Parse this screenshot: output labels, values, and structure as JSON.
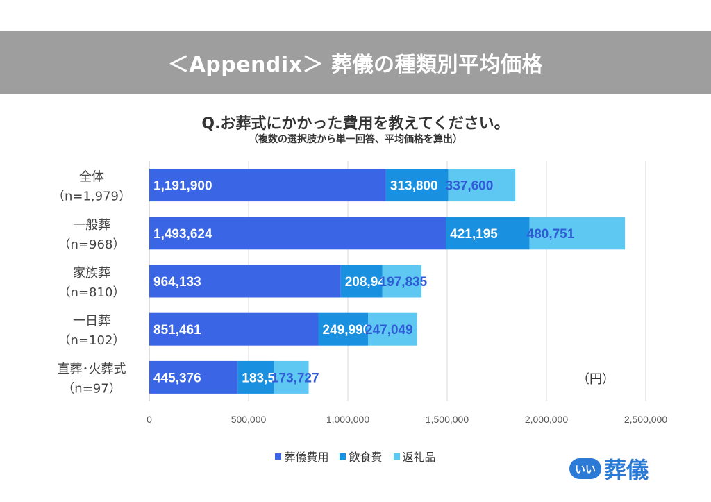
{
  "header": {
    "title": "＜Appendix＞ 葬儀の種類別平均価格"
  },
  "question": {
    "title": "Q.お葬式にかかった費用を教えてください。",
    "subtitle": "（複数の選択肢から単一回答、平均価格を算出）"
  },
  "unit_label": "（円）",
  "legend_labels": [
    "葬儀費用",
    "飲食費",
    "返礼品"
  ],
  "colors": {
    "funeral": "#3a66e6",
    "food": "#1a90e0",
    "gift": "#5fc8f2",
    "header_bg": "#9e9e9e"
  },
  "logo": {
    "circle_text": "いい",
    "text": "葬儀"
  },
  "chart_data": {
    "type": "bar",
    "orientation": "horizontal",
    "stacked": true,
    "categories": [
      {
        "name": "全体",
        "n": "（n=1,979）"
      },
      {
        "name": "一般葬",
        "n": "（n=968）"
      },
      {
        "name": "家族葬",
        "n": "（n=810）"
      },
      {
        "name": "一日葬",
        "n": "（n=102）"
      },
      {
        "name": "直葬･火葬式",
        "n": "（n=97）"
      }
    ],
    "series": [
      {
        "name": "葬儀費用",
        "values": [
          1191900,
          1493624,
          964133,
          851461,
          445376
        ],
        "labels": [
          "1,191,900",
          "1,493,624",
          "964,133",
          "851,461",
          "445,376"
        ]
      },
      {
        "name": "飲食費",
        "values": [
          313800,
          421195,
          208946,
          249990,
          183521
        ],
        "labels": [
          "313,800",
          "421,195",
          "208,946",
          "249,990",
          "183,521"
        ]
      },
      {
        "name": "返礼品",
        "values": [
          337600,
          480751,
          197835,
          247049,
          173727
        ],
        "labels": [
          "337,600",
          "480,751",
          "197,835",
          "247,049",
          "173,727"
        ]
      }
    ],
    "xlim": [
      0,
      2500000
    ],
    "xticks": [
      0,
      500000,
      1000000,
      1500000,
      2000000,
      2500000
    ],
    "xtick_labels": [
      "0",
      "500,000",
      "1,000,000",
      "1,500,000",
      "2,000,000",
      "2,500,000"
    ],
    "grid": true,
    "legend_position": "bottom"
  }
}
